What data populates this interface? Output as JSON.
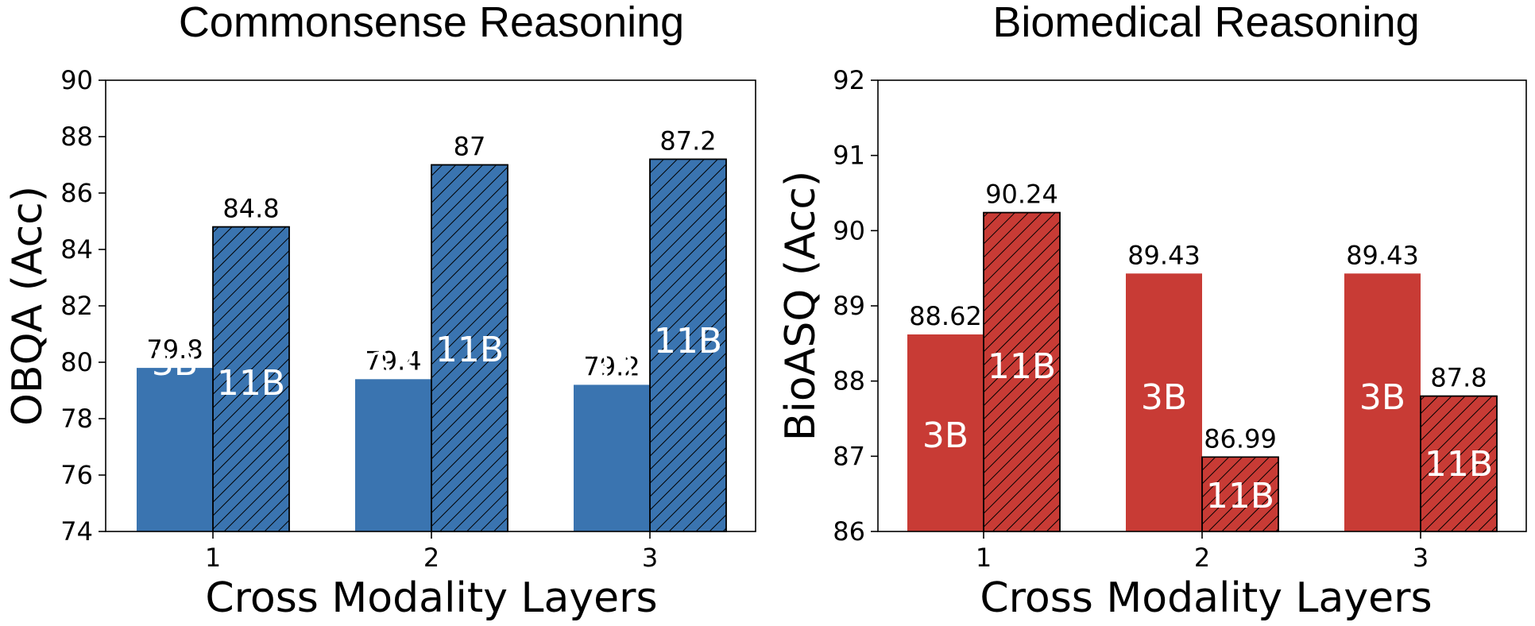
{
  "chart_data": [
    {
      "type": "bar",
      "title": "Commonsense Reasoning",
      "xlabel": "Cross Modality Layers",
      "ylabel": "OBQA (Acc)",
      "categories": [
        "1",
        "2",
        "3"
      ],
      "ylim": [
        74,
        90
      ],
      "yticks": [
        "74",
        "76",
        "78",
        "80",
        "82",
        "84",
        "86",
        "88",
        "90"
      ],
      "grid": false,
      "color": "#3a74b0",
      "series": [
        {
          "name": "3B",
          "hatched": false,
          "values": [
            79.8,
            79.4,
            79.2
          ],
          "value_labels": [
            "79.8",
            "79.4",
            "79.2"
          ]
        },
        {
          "name": "11B",
          "hatched": true,
          "values": [
            84.8,
            87,
            87.2
          ],
          "value_labels": [
            "84.8",
            "87",
            "87.2"
          ]
        }
      ]
    },
    {
      "type": "bar",
      "title": "Biomedical Reasoning",
      "xlabel": "Cross Modality Layers",
      "ylabel": "BioASQ (Acc)",
      "categories": [
        "1",
        "2",
        "3"
      ],
      "ylim": [
        86,
        92
      ],
      "yticks": [
        "86",
        "87",
        "88",
        "89",
        "90",
        "91",
        "92"
      ],
      "grid": false,
      "color": "#c83b35",
      "series": [
        {
          "name": "3B",
          "hatched": false,
          "values": [
            88.62,
            89.43,
            89.43
          ],
          "value_labels": [
            "88.62",
            "89.43",
            "89.43"
          ]
        },
        {
          "name": "11B",
          "hatched": true,
          "values": [
            90.24,
            86.99,
            87.8
          ],
          "value_labels": [
            "90.24",
            "86.99",
            "87.8"
          ]
        }
      ]
    }
  ]
}
